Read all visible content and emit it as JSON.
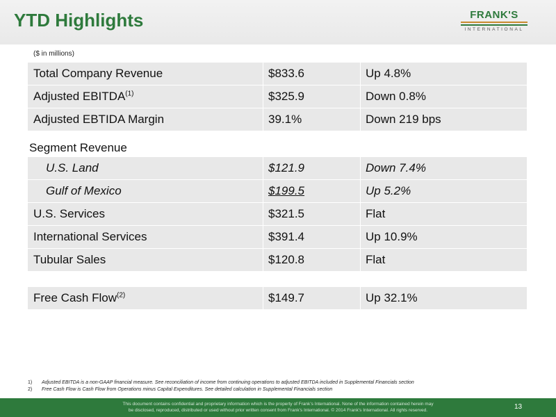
{
  "header": {
    "title": "YTD Highlights",
    "logo": {
      "name": "FRANK'S",
      "subtitle": "INTERNATIONAL"
    }
  },
  "units_note": "($ in millions)",
  "summary_rows": [
    {
      "label": "Total Company Revenue",
      "value": "$833.6",
      "change": "Up 4.8%"
    },
    {
      "label": "Adjusted EBITDA",
      "sup": "(1)",
      "value": "$325.9",
      "change": "Down 0.8%"
    },
    {
      "label": "Adjusted EBTIDA Margin",
      "value": "39.1%",
      "change": "Down 219 bps"
    }
  ],
  "segment_revenue_label": "Segment Revenue",
  "segment_rows": [
    {
      "label": "U.S. Land",
      "value": "$121.9",
      "change": "Down 7.4%"
    },
    {
      "label": "Gulf of Mexico",
      "value": "$199.5",
      "change": "Up 5.2%"
    },
    {
      "label": "U.S. Services",
      "value": "$321.5",
      "change": "Flat"
    },
    {
      "label": "International Services",
      "value": "$391.4",
      "change": "Up 10.9%"
    },
    {
      "label": "Tubular Sales",
      "value": "$120.8",
      "change": "Flat"
    }
  ],
  "fcf_row": {
    "label": "Free Cash Flow",
    "sup": "(2)",
    "value": "$149.7",
    "change": "Up 32.1%"
  },
  "footnotes": [
    {
      "num": "1)",
      "text": "Adjusted EBITDA is a non-GAAP financial measure.  See reconciliation of income from continuing operations to adjusted EBITDA included in Supplemental Financials section"
    },
    {
      "num": "2)",
      "text": "Free Cash Flow is Cash Flow from Operations minus Capital Expenditures. See detailed calculation in Supplemental Financials section"
    }
  ],
  "footer": {
    "confidential_line1": "This document contains confidential and proprietary information which is the property of Frank’s International.  None of the information contained herein may",
    "confidential_line2": "be disclosed, reproduced, distributed or used without prior written consent from Frank’s International. © 2014 Frank’s International.  All rights reserved.",
    "page_number": "13"
  },
  "colors": {
    "brand_green": "#2e7a3c",
    "brand_gold": "#c98a2e",
    "row_bg": "#e8e8e8"
  }
}
